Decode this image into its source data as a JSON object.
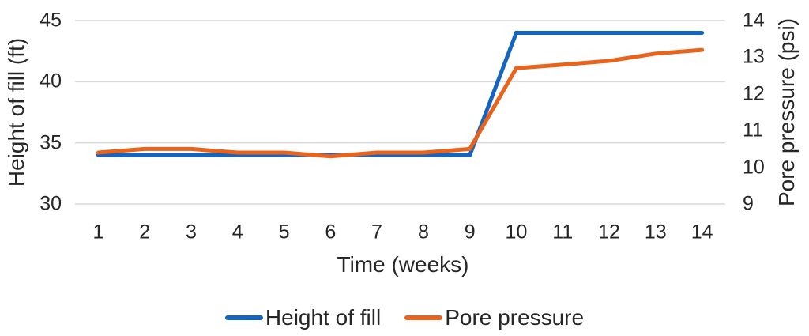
{
  "chart_data": {
    "type": "line",
    "title": "",
    "x_axis": {
      "title": "Time (weeks)",
      "ticks": [
        1,
        2,
        3,
        4,
        5,
        6,
        7,
        8,
        9,
        10,
        11,
        12,
        13,
        14
      ]
    },
    "left_axis": {
      "title": "Height of fill (ft)",
      "min": 30,
      "max": 45,
      "ticks": [
        30,
        35,
        40,
        45
      ]
    },
    "right_axis": {
      "title": "Pore pressure (psi)",
      "min": 9,
      "max": 14,
      "ticks": [
        9,
        10,
        11,
        12,
        13,
        14
      ]
    },
    "grid": true,
    "legend_position": "bottom",
    "series": [
      {
        "name": "Height of fill",
        "axis": "left",
        "color": "#1565C0",
        "values": [
          34,
          34,
          34,
          34,
          34,
          34,
          34,
          34,
          34,
          44,
          44,
          44,
          44,
          44
        ]
      },
      {
        "name": "Pore pressure",
        "axis": "right",
        "color": "#E8641C",
        "values": [
          10.4,
          10.5,
          10.5,
          10.4,
          10.4,
          10.3,
          10.4,
          10.4,
          10.5,
          12.7,
          12.8,
          12.9,
          13.1,
          13.2
        ]
      }
    ],
    "colors": {
      "gridline": "#D9D9D9",
      "text": "#262626",
      "background": "#FFFFFF"
    }
  }
}
